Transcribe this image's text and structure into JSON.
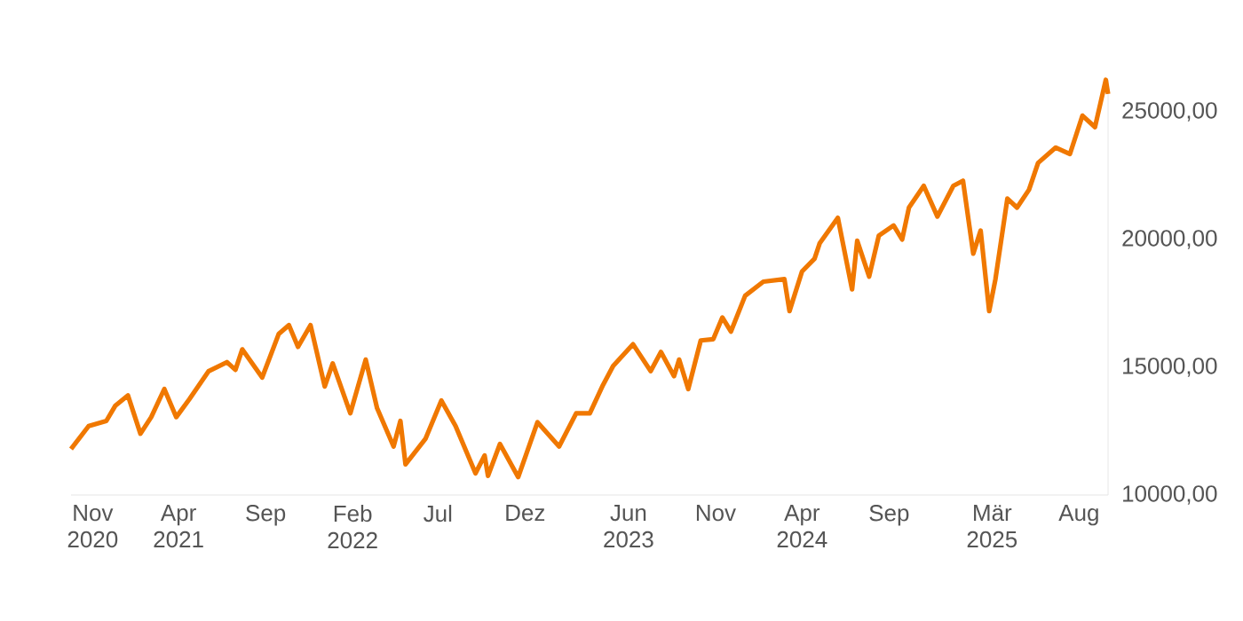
{
  "chart_data": {
    "type": "line",
    "color": "#f07800",
    "grid": false,
    "xlim": [
      "2020-09-24",
      "2025-09-21"
    ],
    "ylim": [
      10000,
      26250
    ],
    "yticks": [
      {
        "value": 10000,
        "label": "10000,00"
      },
      {
        "value": 15000,
        "label": "15000,00"
      },
      {
        "value": 20000,
        "label": "20000,00"
      },
      {
        "value": 25000,
        "label": "25000,00"
      }
    ],
    "xticks": [
      {
        "value": "2020-11-01",
        "label": "Nov 2020"
      },
      {
        "value": "2021-04-01",
        "label": "Apr 2021"
      },
      {
        "value": "2021-09-01",
        "label": "Sep"
      },
      {
        "value": "2022-02-01",
        "label": "Feb 2022"
      },
      {
        "value": "2022-07-01",
        "label": "Jul"
      },
      {
        "value": "2022-12-01",
        "label": "Dez"
      },
      {
        "value": "2023-06-01",
        "label": "Jun 2023"
      },
      {
        "value": "2023-11-01",
        "label": "Nov"
      },
      {
        "value": "2024-04-01",
        "label": "Apr 2024"
      },
      {
        "value": "2024-09-01",
        "label": "Sep"
      },
      {
        "value": "2025-03-01",
        "label": "Mär 2025"
      },
      {
        "value": "2025-08-01",
        "label": "Aug"
      }
    ],
    "x": [
      "2020-09-24",
      "2020-10-25",
      "2020-11-25",
      "2020-12-11",
      "2021-01-02",
      "2021-01-24",
      "2021-02-12",
      "2021-03-07",
      "2021-03-28",
      "2021-04-20",
      "2021-05-24",
      "2021-06-25",
      "2021-07-10",
      "2021-07-22",
      "2021-08-26",
      "2021-09-24",
      "2021-10-12",
      "2021-10-28",
      "2021-11-19",
      "2021-12-14",
      "2021-12-28",
      "2022-01-28",
      "2022-02-24",
      "2022-03-16",
      "2022-04-14",
      "2022-04-26",
      "2022-05-05",
      "2022-06-09",
      "2022-07-07",
      "2022-08-01",
      "2022-09-05",
      "2022-09-21",
      "2022-09-27",
      "2022-10-18",
      "2022-11-19",
      "2022-12-23",
      "2023-01-30",
      "2023-03-01",
      "2023-03-25",
      "2023-04-17",
      "2023-05-05",
      "2023-06-09",
      "2023-07-10",
      "2023-07-28",
      "2023-08-20",
      "2023-08-29",
      "2023-09-14",
      "2023-10-06",
      "2023-10-28",
      "2023-11-13",
      "2023-11-28",
      "2023-12-23",
      "2024-01-24",
      "2024-03-01",
      "2024-03-10",
      "2024-04-01",
      "2024-04-23",
      "2024-05-02",
      "2024-06-03",
      "2024-06-28",
      "2024-07-07",
      "2024-07-28",
      "2024-08-14",
      "2024-09-09",
      "2024-09-24",
      "2024-10-06",
      "2024-11-01",
      "2024-11-25",
      "2024-12-23",
      "2025-01-09",
      "2025-01-27",
      "2025-02-09",
      "2025-02-24",
      "2025-03-07",
      "2025-03-28",
      "2025-04-14",
      "2025-05-05",
      "2025-05-21",
      "2025-06-21",
      "2025-07-16",
      "2025-08-07",
      "2025-08-29",
      "2025-09-17",
      "2025-09-21"
    ],
    "values": [
      11800,
      12700,
      12900,
      13500,
      13900,
      12400,
      13050,
      14150,
      13050,
      13750,
      14850,
      15200,
      14900,
      15700,
      14600,
      16300,
      16650,
      15800,
      16650,
      14250,
      15150,
      13200,
      15300,
      13400,
      11900,
      12900,
      11200,
      12200,
      13700,
      12700,
      10850,
      11550,
      10750,
      12000,
      10700,
      12850,
      11900,
      13200,
      13200,
      14300,
      15050,
      15900,
      14850,
      15600,
      14650,
      15300,
      14150,
      16050,
      16100,
      16950,
      16400,
      17800,
      18350,
      18450,
      17200,
      18750,
      19250,
      19850,
      20850,
      18050,
      19950,
      18550,
      20150,
      20550,
      20000,
      21250,
      22100,
      20900,
      22100,
      22300,
      19450,
      20350,
      17200,
      18450,
      21600,
      21250,
      21950,
      23000,
      23600,
      23350,
      24850,
      24400,
      26250,
      25700
    ]
  }
}
